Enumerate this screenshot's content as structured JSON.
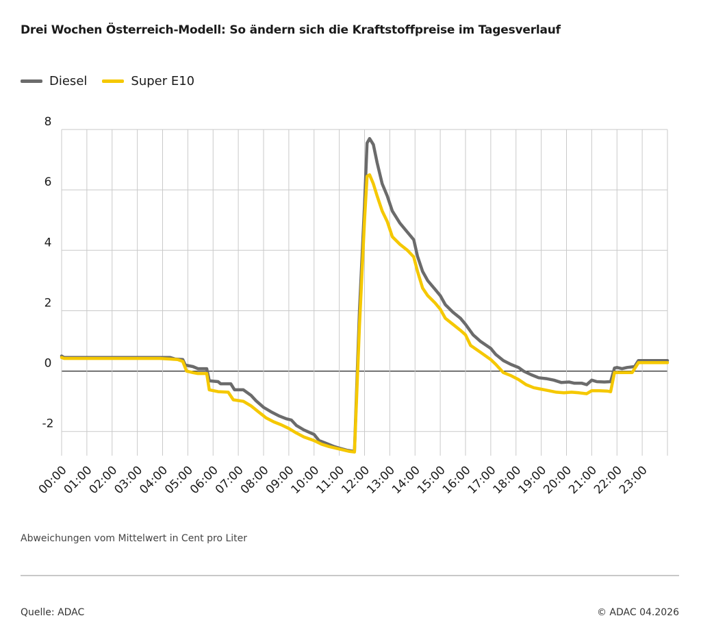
{
  "header": {
    "title": "Drei Wochen Österreich-Modell: So ändern sich die Kraftstoffpreise im Tagesverlauf"
  },
  "legend": [
    {
      "label": "Diesel",
      "color": "#6b6b6b"
    },
    {
      "label": "Super E10",
      "color": "#f5c800"
    }
  ],
  "footer": {
    "note": "Abweichungen vom Mittelwert in Cent pro Liter",
    "source": "Quelle: ADAC",
    "copyright": "© ADAC 04.2026"
  },
  "chart_data": {
    "type": "line",
    "title": "Drei Wochen Österreich-Modell: So ändern sich die Kraftstoffpreise im Tagesverlauf",
    "xlabel": "",
    "ylabel": "",
    "note": "Abweichungen vom Mittelwert in Cent pro Liter",
    "ylim": [
      -2.8,
      8
    ],
    "xlim": [
      0,
      24
    ],
    "yticks": [
      8,
      6,
      4,
      2,
      0,
      -2
    ],
    "xticks": [
      "00:00",
      "01:00",
      "02:00",
      "03:00",
      "04:00",
      "05:00",
      "06:00",
      "07:00",
      "08:00",
      "09:00",
      "10:00",
      "11:00",
      "12:00",
      "13:00",
      "14:00",
      "15:00",
      "16:00",
      "17:00",
      "18:00",
      "19:00",
      "20:00",
      "21:00",
      "22:00",
      "23:00"
    ],
    "grid": true,
    "legend_position": "top-left",
    "series": [
      {
        "name": "Diesel",
        "color": "#6b6b6b",
        "points": [
          [
            0,
            0.5
          ],
          [
            0.1,
            0.45
          ],
          [
            1,
            0.45
          ],
          [
            2,
            0.45
          ],
          [
            3,
            0.45
          ],
          [
            3.9,
            0.45
          ],
          [
            4.3,
            0.45
          ],
          [
            4.5,
            0.4
          ],
          [
            4.8,
            0.38
          ],
          [
            4.9,
            0.2
          ],
          [
            5.2,
            0.15
          ],
          [
            5.4,
            0.08
          ],
          [
            5.75,
            0.08
          ],
          [
            5.85,
            -0.32
          ],
          [
            6.2,
            -0.35
          ],
          [
            6.3,
            -0.42
          ],
          [
            6.7,
            -0.42
          ],
          [
            6.85,
            -0.62
          ],
          [
            7.2,
            -0.62
          ],
          [
            7.5,
            -0.8
          ],
          [
            7.7,
            -0.98
          ],
          [
            8,
            -1.2
          ],
          [
            8.3,
            -1.35
          ],
          [
            8.6,
            -1.48
          ],
          [
            8.9,
            -1.58
          ],
          [
            9.1,
            -1.62
          ],
          [
            9.3,
            -1.8
          ],
          [
            9.6,
            -1.95
          ],
          [
            10,
            -2.1
          ],
          [
            10.2,
            -2.3
          ],
          [
            10.5,
            -2.4
          ],
          [
            10.8,
            -2.5
          ],
          [
            11,
            -2.55
          ],
          [
            11.3,
            -2.62
          ],
          [
            11.5,
            -2.65
          ],
          [
            11.6,
            -2.65
          ],
          [
            11.8,
            2.0
          ],
          [
            12.0,
            5.5
          ],
          [
            12.1,
            7.55
          ],
          [
            12.2,
            7.7
          ],
          [
            12.35,
            7.5
          ],
          [
            12.5,
            6.9
          ],
          [
            12.7,
            6.2
          ],
          [
            12.9,
            5.8
          ],
          [
            13.1,
            5.3
          ],
          [
            13.4,
            4.9
          ],
          [
            13.7,
            4.6
          ],
          [
            13.95,
            4.35
          ],
          [
            14.1,
            3.8
          ],
          [
            14.3,
            3.3
          ],
          [
            14.5,
            3.0
          ],
          [
            14.8,
            2.7
          ],
          [
            15.0,
            2.5
          ],
          [
            15.2,
            2.2
          ],
          [
            15.5,
            1.95
          ],
          [
            15.8,
            1.75
          ],
          [
            16.0,
            1.55
          ],
          [
            16.3,
            1.2
          ],
          [
            16.6,
            0.98
          ],
          [
            17.0,
            0.75
          ],
          [
            17.2,
            0.55
          ],
          [
            17.5,
            0.35
          ],
          [
            17.8,
            0.22
          ],
          [
            18.1,
            0.12
          ],
          [
            18.3,
            0.0
          ],
          [
            18.6,
            -0.12
          ],
          [
            18.9,
            -0.22
          ],
          [
            19.2,
            -0.25
          ],
          [
            19.5,
            -0.3
          ],
          [
            19.8,
            -0.38
          ],
          [
            20.1,
            -0.36
          ],
          [
            20.3,
            -0.4
          ],
          [
            20.6,
            -0.4
          ],
          [
            20.8,
            -0.45
          ],
          [
            21.0,
            -0.3
          ],
          [
            21.2,
            -0.35
          ],
          [
            21.5,
            -0.36
          ],
          [
            21.75,
            -0.35
          ],
          [
            21.9,
            0.1
          ],
          [
            22.0,
            0.12
          ],
          [
            22.2,
            0.08
          ],
          [
            22.4,
            0.12
          ],
          [
            22.7,
            0.15
          ],
          [
            22.85,
            0.35
          ],
          [
            23.2,
            0.35
          ],
          [
            23.6,
            0.35
          ],
          [
            24,
            0.35
          ]
        ]
      },
      {
        "name": "Super E10",
        "color": "#f5c800",
        "points": [
          [
            0,
            0.45
          ],
          [
            0.1,
            0.42
          ],
          [
            1,
            0.42
          ],
          [
            2,
            0.42
          ],
          [
            3,
            0.42
          ],
          [
            3.9,
            0.42
          ],
          [
            4.3,
            0.4
          ],
          [
            4.6,
            0.38
          ],
          [
            4.8,
            0.32
          ],
          [
            4.95,
            0.0
          ],
          [
            5.2,
            -0.05
          ],
          [
            5.4,
            -0.08
          ],
          [
            5.75,
            -0.08
          ],
          [
            5.85,
            -0.62
          ],
          [
            6.2,
            -0.68
          ],
          [
            6.6,
            -0.7
          ],
          [
            6.8,
            -0.95
          ],
          [
            7.2,
            -1.0
          ],
          [
            7.5,
            -1.15
          ],
          [
            7.8,
            -1.35
          ],
          [
            8.1,
            -1.55
          ],
          [
            8.4,
            -1.68
          ],
          [
            8.7,
            -1.78
          ],
          [
            9.0,
            -1.9
          ],
          [
            9.3,
            -2.05
          ],
          [
            9.6,
            -2.18
          ],
          [
            10.0,
            -2.3
          ],
          [
            10.3,
            -2.42
          ],
          [
            10.6,
            -2.5
          ],
          [
            10.9,
            -2.56
          ],
          [
            11.2,
            -2.62
          ],
          [
            11.4,
            -2.66
          ],
          [
            11.6,
            -2.68
          ],
          [
            11.8,
            1.5
          ],
          [
            12.0,
            5.0
          ],
          [
            12.1,
            6.45
          ],
          [
            12.2,
            6.5
          ],
          [
            12.35,
            6.2
          ],
          [
            12.5,
            5.8
          ],
          [
            12.7,
            5.3
          ],
          [
            12.9,
            4.95
          ],
          [
            13.1,
            4.45
          ],
          [
            13.4,
            4.2
          ],
          [
            13.7,
            4.0
          ],
          [
            13.95,
            3.78
          ],
          [
            14.1,
            3.3
          ],
          [
            14.3,
            2.75
          ],
          [
            14.5,
            2.5
          ],
          [
            14.8,
            2.25
          ],
          [
            15.0,
            2.05
          ],
          [
            15.2,
            1.75
          ],
          [
            15.5,
            1.55
          ],
          [
            15.8,
            1.35
          ],
          [
            16.0,
            1.2
          ],
          [
            16.2,
            0.85
          ],
          [
            16.6,
            0.62
          ],
          [
            17.0,
            0.38
          ],
          [
            17.2,
            0.22
          ],
          [
            17.5,
            -0.05
          ],
          [
            17.8,
            -0.15
          ],
          [
            18.1,
            -0.28
          ],
          [
            18.4,
            -0.45
          ],
          [
            18.7,
            -0.55
          ],
          [
            19.0,
            -0.6
          ],
          [
            19.3,
            -0.65
          ],
          [
            19.6,
            -0.7
          ],
          [
            19.9,
            -0.72
          ],
          [
            20.2,
            -0.7
          ],
          [
            20.5,
            -0.72
          ],
          [
            20.8,
            -0.75
          ],
          [
            21.0,
            -0.65
          ],
          [
            21.3,
            -0.65
          ],
          [
            21.6,
            -0.66
          ],
          [
            21.75,
            -0.68
          ],
          [
            21.9,
            -0.05
          ],
          [
            22.2,
            -0.05
          ],
          [
            22.6,
            -0.05
          ],
          [
            22.85,
            0.28
          ],
          [
            23.2,
            0.28
          ],
          [
            23.6,
            0.28
          ],
          [
            24,
            0.28
          ]
        ]
      }
    ]
  }
}
